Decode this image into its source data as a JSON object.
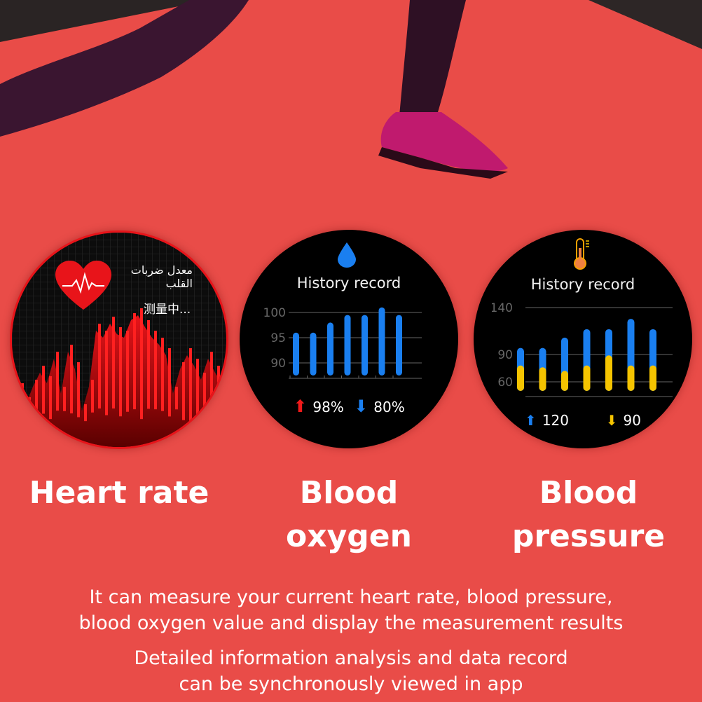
{
  "colors": {
    "background": "#e94c48",
    "oxygen_bar": "#1a7ff0",
    "bp_high": "#1a7ff0",
    "bp_low": "#f5c400",
    "heart_red": "#e8141a"
  },
  "heart_rate": {
    "label_arabic": "معدل ضربات القلب",
    "label_measuring": "测量中...",
    "icon": "heart-ecg-icon",
    "caption": "Heart rate"
  },
  "blood_oxygen": {
    "icon": "water-drop-icon",
    "title": "History record",
    "chart_data": {
      "type": "bar",
      "y_ticks": [
        100,
        95,
        90
      ],
      "values": [
        96,
        96,
        98,
        99.5,
        99.5,
        101,
        99.5
      ],
      "ylim": [
        87.5,
        101
      ]
    },
    "max_label": "98%",
    "min_label": "80%",
    "caption_line1": "Blood",
    "caption_line2": "oxygen"
  },
  "blood_pressure": {
    "icon": "thermometer-icon",
    "title": "History record",
    "chart_data": {
      "type": "bar",
      "y_ticks": [
        140,
        90,
        60
      ],
      "series": [
        {
          "values": [
            97,
            97,
            108,
            117,
            117,
            128,
            117
          ]
        },
        {
          "values": [
            78,
            76,
            72,
            78,
            89,
            78,
            78
          ]
        }
      ],
      "ylim": [
        50,
        140
      ]
    },
    "high_label": "120",
    "low_label": "90",
    "caption_line1": "Blood",
    "caption_line2": "pressure"
  },
  "description": {
    "line1": "It can measure your current heart rate, blood pressure,",
    "line2": "blood oxygen value and display the measurement results",
    "line3": "Detailed information analysis and data record",
    "line4": "can be synchronously viewed in app"
  }
}
